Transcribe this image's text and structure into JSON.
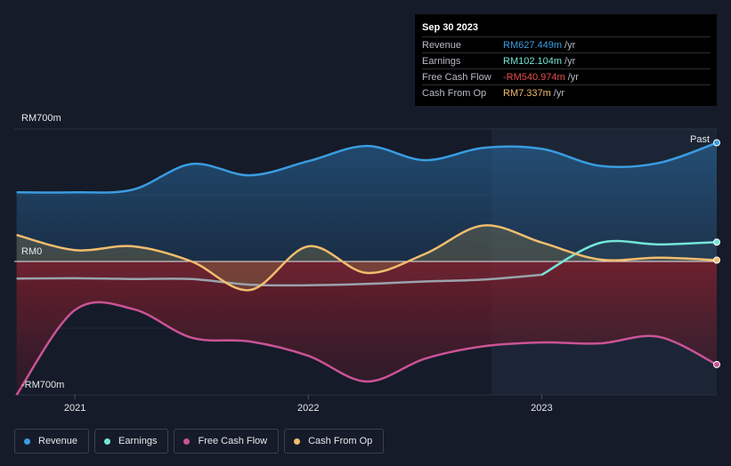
{
  "tooltip": {
    "date": "Sep 30 2023",
    "rows": [
      {
        "name": "Revenue",
        "value": "RM627.449m",
        "unit": "/yr",
        "color": "#3a9ce0"
      },
      {
        "name": "Earnings",
        "value": "RM102.104m",
        "unit": "/yr",
        "color": "#73e6d8"
      },
      {
        "name": "Free Cash Flow",
        "value": "-RM540.974m",
        "unit": "/yr",
        "color": "#e84d4d"
      },
      {
        "name": "Cash From Op",
        "value": "RM7.337m",
        "unit": "/yr",
        "color": "#f0bd6e"
      }
    ]
  },
  "past_label": "Past",
  "legend": [
    {
      "name": "Revenue",
      "color": "#3a9ce0"
    },
    {
      "name": "Earnings",
      "color": "#73e6d8"
    },
    {
      "name": "Free Cash Flow",
      "color": "#c95396"
    },
    {
      "name": "Cash From Op",
      "color": "#f0bd6e"
    }
  ],
  "chart_data": {
    "type": "area",
    "y_tick_labels": [
      "RM700m",
      "RM0",
      "-RM700m"
    ],
    "ylim": [
      -700,
      700
    ],
    "x_tick_labels": [
      "2021",
      "2022",
      "2023"
    ],
    "x_ticks": [
      2021.0,
      2022.0,
      2023.0
    ],
    "xlim": [
      2020.74,
      2023.75
    ],
    "series": [
      {
        "name": "Revenue",
        "color": "#3a9ce0",
        "x": [
          2020.75,
          2021.0,
          2021.25,
          2021.5,
          2021.75,
          2022.0,
          2022.25,
          2022.5,
          2022.75,
          2023.0,
          2023.25,
          2023.5,
          2023.75
        ],
        "y": [
          365,
          365,
          380,
          515,
          455,
          530,
          610,
          535,
          600,
          595,
          505,
          520,
          627
        ]
      },
      {
        "name": "Earnings",
        "color": "#73e6d8",
        "x": [
          2020.75,
          2021.0,
          2021.25,
          2021.5,
          2021.75,
          2022.0,
          2022.25,
          2022.5,
          2022.75,
          2023.0,
          2023.25,
          2023.5,
          2023.75
        ],
        "y": [
          -90,
          -88,
          -92,
          -92,
          -122,
          -125,
          -118,
          -105,
          -95,
          -70,
          98,
          90,
          102
        ]
      },
      {
        "name": "Free Cash Flow",
        "color": "#c95396",
        "x": [
          2020.75,
          2021.0,
          2021.25,
          2021.5,
          2021.75,
          2022.0,
          2022.25,
          2022.5,
          2022.75,
          2023.0,
          2023.25,
          2023.5,
          2023.75
        ],
        "y": [
          -700,
          -255,
          -250,
          -400,
          -420,
          -495,
          -630,
          -510,
          -445,
          -425,
          -430,
          -395,
          -541
        ]
      },
      {
        "name": "Cash From Op",
        "color": "#f0bd6e",
        "x": [
          2020.75,
          2021.0,
          2021.25,
          2021.5,
          2021.75,
          2022.0,
          2022.25,
          2022.5,
          2022.75,
          2023.0,
          2023.25,
          2023.5,
          2023.75
        ],
        "y": [
          140,
          60,
          80,
          0,
          -150,
          80,
          -60,
          40,
          190,
          100,
          10,
          20,
          7
        ]
      }
    ]
  }
}
